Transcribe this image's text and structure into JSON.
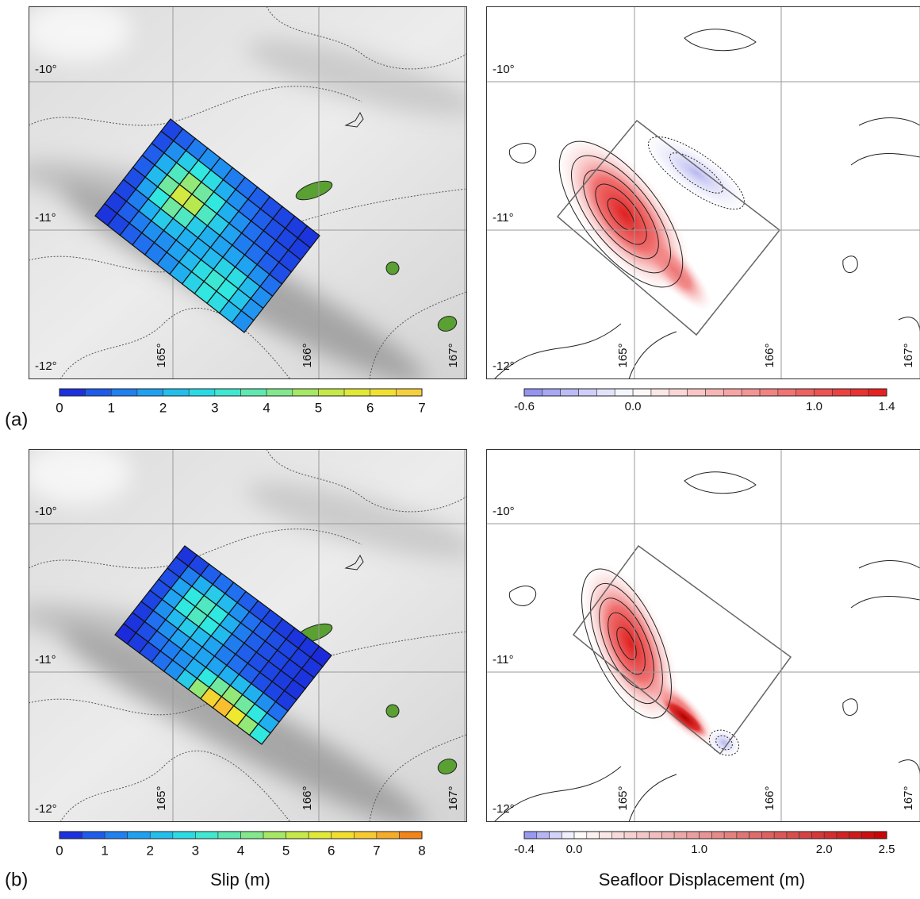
{
  "figure": {
    "rows": [
      {
        "label": "(a)",
        "slip_map": {
          "lat_labels": [
            "-10°",
            "-11°",
            "-12°"
          ],
          "lon_labels": [
            "165°",
            "166°",
            "167°"
          ],
          "slip": [
            [
              0.5,
              0.8,
              1.2,
              1.5,
              1.5,
              1.2,
              1,
              0.8,
              0.6,
              0.5,
              0.4,
              0.3
            ],
            [
              0.6,
              1.5,
              2.5,
              3,
              2.8,
              2,
              1.5,
              1,
              0.8,
              0.6,
              0.5,
              0.4
            ],
            [
              0.8,
              2,
              3.5,
              4.5,
              4,
              3,
              2,
              1.5,
              1,
              0.8,
              0.6,
              0.5
            ],
            [
              0.8,
              2.2,
              4,
              5.5,
              5,
              3.5,
              2.5,
              1.8,
              1.2,
              1,
              0.8,
              0.6
            ],
            [
              0.6,
              1.8,
              3,
              4,
              3.5,
              2.5,
              2,
              1.8,
              1.8,
              1.8,
              1.5,
              1
            ],
            [
              0.5,
              1.2,
              2,
              2.5,
              2.2,
              2,
              2,
              2.2,
              2.6,
              2.8,
              2.2,
              1.5
            ],
            [
              0.4,
              0.8,
              1.2,
              1.5,
              1.5,
              1.8,
              2.2,
              2.8,
              3.2,
              3,
              2.4,
              1.6
            ],
            [
              0.3,
              0.5,
              0.8,
              1,
              1.2,
              1.5,
              2,
              2.6,
              3,
              2.8,
              2.2,
              1.5
            ]
          ]
        },
        "slip_colorbar": {
          "range": [
            0,
            7
          ],
          "ticks": [
            0,
            1,
            2,
            3,
            4,
            5,
            6,
            7
          ],
          "colormap": [
            "#1a1ad6",
            "#2070f0",
            "#20b0f0",
            "#30e8e0",
            "#70e8a0",
            "#b8e850",
            "#eee830",
            "#f8c840"
          ]
        },
        "displacement_map": {
          "lat_labels": [
            "-10°",
            "-11°",
            "-12°"
          ],
          "lon_labels": [
            "165°",
            "166°",
            "167°"
          ]
        },
        "displacement_colorbar": {
          "range": [
            -0.6,
            1.4
          ],
          "ticks": [
            -0.6,
            {
              "value": 0,
              "label": "0.0"
            },
            {
              "value": 1,
              "label": "1.0"
            },
            1.4
          ],
          "colormap": [
            "#8a8af0",
            "#ffffff",
            "#e81818"
          ]
        }
      },
      {
        "label": "(b)",
        "slip_map": {
          "lat_labels": [
            "-10°",
            "-11°",
            "-12°"
          ],
          "lon_labels": [
            "165°",
            "166°",
            "167°"
          ],
          "slip": [
            [
              0.3,
              0.5,
              0.8,
              1,
              1,
              0.8,
              0.6,
              0.5,
              0.4,
              0.3,
              0.3,
              0.2
            ],
            [
              0.5,
              1.2,
              2,
              2.5,
              2.2,
              1.5,
              1,
              0.8,
              0.6,
              0.5,
              0.4,
              0.3
            ],
            [
              0.6,
              1.8,
              3,
              3.5,
              3,
              2,
              1.2,
              0.8,
              0.6,
              0.5,
              0.4,
              0.3
            ],
            [
              0.6,
              1.8,
              3,
              3.5,
              3,
              2.2,
              1.2,
              0.8,
              0.6,
              0.5,
              0.4,
              0.3
            ],
            [
              0.5,
              1.5,
              2.2,
              2.5,
              2.2,
              1.8,
              1.2,
              1,
              0.8,
              0.6,
              0.5,
              0.4
            ],
            [
              0.4,
              1,
              1.5,
              1.8,
              1.8,
              1.8,
              1.8,
              2,
              2.2,
              2,
              1.5,
              1
            ],
            [
              0.3,
              0.6,
              1,
              1.2,
              1.5,
              2,
              3,
              4,
              4.5,
              4,
              3,
              2
            ],
            [
              0.2,
              0.4,
              0.6,
              1,
              1.5,
              2.5,
              4.5,
              6.5,
              7,
              6,
              4.5,
              3
            ]
          ]
        },
        "slip_colorbar": {
          "range": [
            0,
            8
          ],
          "ticks": [
            0,
            1,
            2,
            3,
            4,
            5,
            6,
            7,
            8
          ],
          "colormap": [
            "#1a1ad6",
            "#2070f0",
            "#20b0f0",
            "#30e8e0",
            "#70e8a0",
            "#b8e850",
            "#eee830",
            "#f8c030",
            "#f07010"
          ]
        },
        "slip_title": "Slip (m)",
        "displacement_map": {
          "lat_labels": [
            "-10°",
            "-11°",
            "-12°"
          ],
          "lon_labels": [
            "165°",
            "166°",
            "167°"
          ]
        },
        "displacement_colorbar": {
          "range": [
            -0.4,
            2.5
          ],
          "ticks": [
            -0.4,
            {
              "value": 0,
              "label": "0.0"
            },
            {
              "value": 1,
              "label": "1.0"
            },
            {
              "value": 2,
              "label": "2.0"
            },
            2.5
          ],
          "colormap": [
            "#8a8af0",
            "#ffffff",
            "#c80000"
          ]
        },
        "displacement_title": "Seafloor Displacement (m)"
      }
    ]
  }
}
